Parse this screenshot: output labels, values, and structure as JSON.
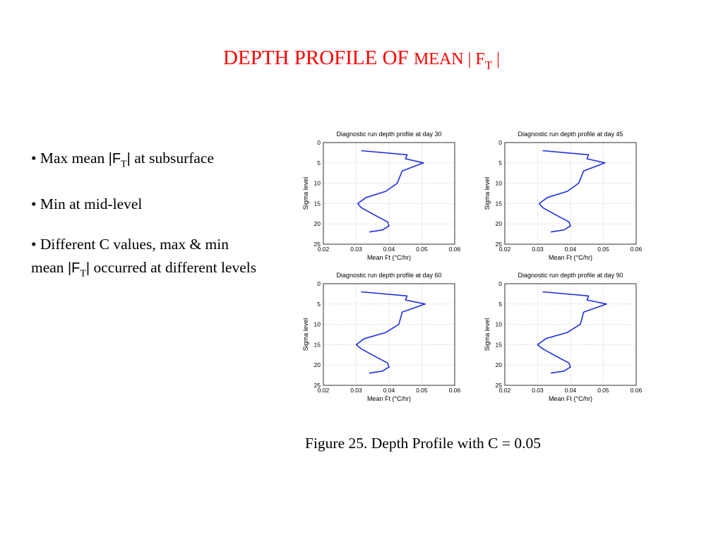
{
  "slide": {
    "title_main": "DEPTH PROFILE OF",
    "title_sc": "MEAN | F",
    "title_sub": "T",
    "title_end": " |",
    "caption": "Figure 25.  Depth Profile  with C = 0.05"
  },
  "bullets": {
    "b1_pre": "• Max mean ",
    "b1_open": "|F",
    "b1_sub": "T",
    "b1_close": "|",
    "b1_post": "  at subsurface",
    "b2": "• Min at mid-level",
    "b3_pre": "• Different C values,  max & min  mean ",
    "b3_open": "|F",
    "b3_sub": "T",
    "b3_close": "|",
    "b3_post": " occurred at different levels"
  },
  "colors": {
    "title": "#ff0000",
    "line": "#1f2fe6"
  },
  "chart_data": [
    {
      "type": "line",
      "title": "Diagnostic run depth profile at day 30",
      "xlabel": "Mean Ft (°C/hr)",
      "ylabel": "Sigma level",
      "xlim": [
        0.02,
        0.06
      ],
      "ylim": [
        25,
        0
      ],
      "x_ticks": [
        "0.02",
        "0.03",
        "0.04",
        "0.05",
        "0.06"
      ],
      "y_ticks": [
        "0",
        "5",
        "10",
        "15",
        "20",
        "25"
      ],
      "grid": true,
      "series": [
        {
          "x": [
            0.0315,
            0.0455,
            0.045,
            0.0505,
            0.044,
            0.0425,
            0.039,
            0.033,
            0.0305,
            0.0315,
            0.036,
            0.0395,
            0.04,
            0.038,
            0.034
          ],
          "y": [
            2,
            3,
            4,
            5,
            7,
            10,
            12,
            13.5,
            15,
            16,
            18,
            19.5,
            20.5,
            21.5,
            22
          ]
        }
      ]
    },
    {
      "type": "line",
      "title": "Diagnostic run depth profile at day 45",
      "xlabel": "Mean Ft (°C/hr)",
      "ylabel": "Sigma level",
      "xlim": [
        0.02,
        0.06
      ],
      "ylim": [
        25,
        0
      ],
      "x_ticks": [
        "0.02",
        "0.03",
        "0.04",
        "0.05",
        "0.06"
      ],
      "y_ticks": [
        "0",
        "5",
        "10",
        "15",
        "20",
        "25"
      ],
      "grid": true,
      "series": [
        {
          "x": [
            0.0315,
            0.0455,
            0.045,
            0.0505,
            0.044,
            0.0425,
            0.039,
            0.033,
            0.0305,
            0.0315,
            0.036,
            0.0395,
            0.04,
            0.038,
            0.034
          ],
          "y": [
            2,
            3,
            4,
            5,
            7,
            10,
            12,
            13.5,
            15,
            16,
            18,
            19.5,
            20.5,
            21.5,
            22
          ]
        }
      ]
    },
    {
      "type": "line",
      "title": "Diagnostic run depth profile at day 60",
      "xlabel": "Mean Ft (°C/hr)",
      "ylabel": "Sigma level",
      "xlim": [
        0.02,
        0.06
      ],
      "ylim": [
        25,
        0
      ],
      "x_ticks": [
        "0.02",
        "0.03",
        "0.04",
        "0.05",
        "0.06"
      ],
      "y_ticks": [
        "0",
        "5",
        "10",
        "15",
        "20",
        "25"
      ],
      "grid": true,
      "series": [
        {
          "x": [
            0.0315,
            0.0455,
            0.045,
            0.051,
            0.044,
            0.043,
            0.039,
            0.0325,
            0.03,
            0.0315,
            0.036,
            0.0395,
            0.04,
            0.038,
            0.034
          ],
          "y": [
            2,
            3,
            4,
            5,
            7,
            10,
            12,
            13.5,
            15,
            16,
            18,
            19.5,
            20.5,
            21.5,
            22
          ]
        }
      ]
    },
    {
      "type": "line",
      "title": "Diagnostic run depth profile at day 90",
      "xlabel": "Mean Ft (°C/hr)",
      "ylabel": "Sigma level",
      "xlim": [
        0.02,
        0.06
      ],
      "ylim": [
        25,
        0
      ],
      "x_ticks": [
        "0.02",
        "0.03",
        "0.04",
        "0.05",
        "0.06"
      ],
      "y_ticks": [
        "0",
        "5",
        "10",
        "15",
        "20",
        "25"
      ],
      "grid": true,
      "series": [
        {
          "x": [
            0.0315,
            0.0455,
            0.045,
            0.051,
            0.044,
            0.043,
            0.039,
            0.0325,
            0.03,
            0.0315,
            0.036,
            0.0395,
            0.04,
            0.038,
            0.034
          ],
          "y": [
            2,
            3,
            4,
            5,
            7,
            10,
            12,
            13.5,
            15,
            16,
            18,
            19.5,
            20.5,
            21.5,
            22
          ]
        }
      ]
    }
  ]
}
